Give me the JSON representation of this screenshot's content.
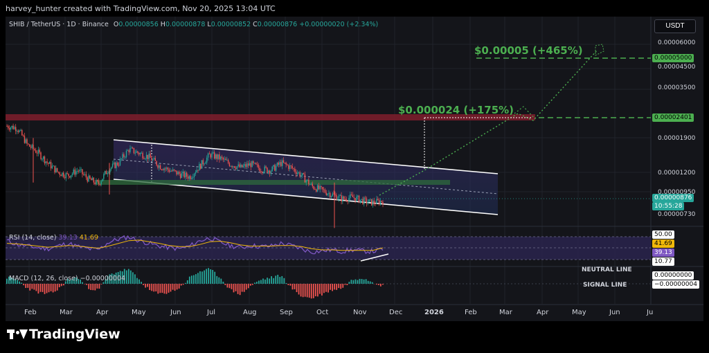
{
  "header": {
    "creator_text": "harvey_hunter created with TradingView.com, Nov 20, 2025 13:04 UTC"
  },
  "symbol_bar": {
    "symbol": "SHIB / TetherUS · 1D · Binance",
    "open_label": "O",
    "open_value": "0.00000856",
    "high_label": "H",
    "high_value": "0.00000878",
    "low_label": "L",
    "low_value": "0.00000852",
    "close_label": "C",
    "close_value": "0.00000876",
    "change": "+0.00000020 (+2.34%)"
  },
  "currency_button": "USDT",
  "colors": {
    "up": "#26a69a",
    "down": "#ef5350",
    "target": "#4caf50",
    "channel": "#ffffff",
    "resistance": "#7f1d2d",
    "rsi": "#7e57c2",
    "rsi_ma": "#f0b90b"
  },
  "chart_data": [
    {
      "type": "candlestick",
      "pane": "price",
      "symbol": "SHIB/USDT",
      "timeframe": "1D",
      "x_ticks": [
        "Feb",
        "Mar",
        "Apr",
        "May",
        "Jun",
        "Jul",
        "Aug",
        "Sep",
        "Oct",
        "Nov",
        "Dec",
        "2026",
        "Feb",
        "Mar",
        "Apr",
        "May",
        "Jun",
        "Ju"
      ],
      "y_ticks": [
        "0.00006000",
        "0.00004500",
        "0.00003500",
        "0.00001900",
        "0.00001200",
        "0.00000950"
      ],
      "y_scale": "log",
      "price_path": [
        2.2e-05,
        2.15e-05,
        1.75e-05,
        1.6e-05,
        1.4e-05,
        1.25e-05,
        1.2e-05,
        1.28e-05,
        1.15e-05,
        1.08e-05,
        1.3e-05,
        1.4e-05,
        1.65e-05,
        1.58e-05,
        1.5e-05,
        1.35e-05,
        1.28e-05,
        1.22e-05,
        1.18e-05,
        1.35e-05,
        1.55e-05,
        1.48e-05,
        1.38e-05,
        1.32e-05,
        1.38e-05,
        1.3e-05,
        1.28e-05,
        1.4e-05,
        1.32e-05,
        1.2e-05,
        1.05e-05,
        1e-05,
        9.5e-06,
        9e-06,
        9.2e-06,
        8.8e-06,
        8.6e-06,
        8.8e-06
      ],
      "annotations": {
        "target_1": {
          "label": "$0.000024 (+175%)",
          "price": "0.00002401"
        },
        "target_2": {
          "label": "$0.00005 (+465%)",
          "price": "0.00005000"
        },
        "last_price": "0.00000876",
        "countdown": "10:55:28",
        "last_axis_tick": "0.00000730"
      }
    },
    {
      "type": "line",
      "pane": "rsi",
      "title": "RSI (14, close)",
      "rsi_value": "39.13",
      "rsi_ma_value": "41.69",
      "levels": [
        "50.00",
        "10.77"
      ],
      "series": [
        {
          "name": "RSI",
          "values": [
            55,
            48,
            45,
            42,
            40,
            45,
            50,
            44,
            40,
            38,
            52,
            58,
            62,
            55,
            50,
            45,
            42,
            40,
            45,
            55,
            60,
            52,
            46,
            42,
            46,
            44,
            45,
            50,
            46,
            40,
            34,
            36,
            38,
            35,
            38,
            36,
            35,
            39
          ]
        },
        {
          "name": "RSI MA",
          "values": [
            50,
            49,
            47,
            45,
            43,
            44,
            46,
            45,
            43,
            41,
            45,
            50,
            55,
            56,
            53,
            50,
            46,
            44,
            44,
            48,
            53,
            54,
            51,
            47,
            45,
            45,
            45,
            46,
            46,
            44,
            40,
            38,
            38,
            37,
            37,
            37,
            37,
            41.7
          ]
        }
      ]
    },
    {
      "type": "bar",
      "pane": "macd",
      "title": "MACD (12, 26, close)",
      "macd_value": "−0.00000004",
      "zero_label": "0.00000000",
      "signal_label": "−0.00000004",
      "series": [
        {
          "name": "Histogram",
          "values": [
            3,
            2,
            -2,
            -4,
            -5,
            -3,
            2,
            3,
            -2,
            -3,
            4,
            6,
            7,
            2,
            -3,
            -5,
            -4,
            -2,
            3,
            6,
            7,
            3,
            -3,
            -5,
            -1,
            2,
            3,
            4,
            -2,
            -6,
            -7,
            -5,
            -3,
            -2,
            2,
            3,
            1,
            -1
          ]
        }
      ]
    }
  ],
  "overlay_labels": {
    "neutral_line": "NEUTRAL LINE",
    "signal_line": "SIGNAL LINE"
  },
  "footer": {
    "brand": "TradingView"
  }
}
